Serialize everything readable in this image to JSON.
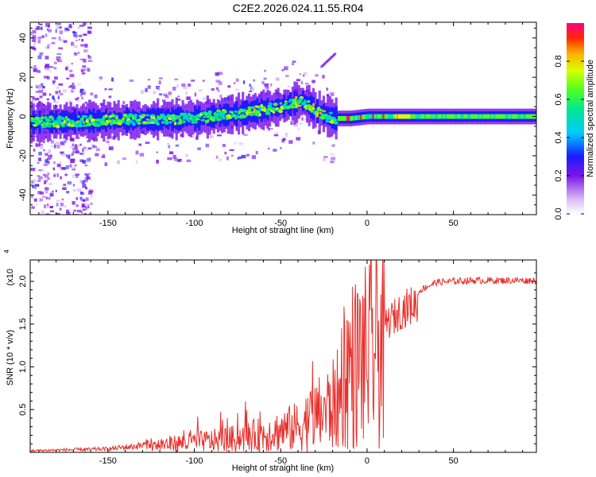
{
  "title": "C2E2.2026.024.11.55.R04",
  "chart_data": [
    {
      "type": "heatmap",
      "xlabel": "Height of straight line (km)",
      "ylabel": "Frequency (Hz)",
      "xlim": [
        -195,
        98
      ],
      "ylim": [
        -50,
        48
      ],
      "xticks": [
        -150,
        -100,
        -50,
        0,
        50
      ],
      "yticks": [
        -40,
        -20,
        0,
        20,
        40
      ],
      "centerline": {
        "x": [
          -195,
          -150,
          -100,
          -70,
          -50,
          -38,
          -30,
          -20,
          -10,
          0,
          20,
          50,
          98
        ],
        "y": [
          -3,
          -2,
          -1,
          2,
          5,
          8,
          3,
          -1,
          -1,
          0,
          0,
          0,
          0
        ]
      },
      "colorbar": {
        "label": "Normalized spectral amplitude",
        "ticks": [
          "0.0",
          "0.2",
          "0.4",
          "0.6",
          "0.8"
        ],
        "range": [
          0,
          1
        ]
      }
    },
    {
      "type": "line",
      "xlabel": "Height of straight line (km)",
      "ylabel": "SNR (10 * v/v)",
      "ymultiplier": "(x10^4)",
      "ymultiplier_base": "(x10",
      "ymultiplier_exp": "4",
      "xlim": [
        -195,
        98
      ],
      "ylim": [
        0,
        2.25
      ],
      "xticks": [
        -150,
        -100,
        -50,
        0,
        50
      ],
      "yticks": [
        "0.5",
        "1.0",
        "1.5",
        "2.0"
      ],
      "series": [
        {
          "name": "SNR",
          "color": "#e8302c",
          "envelope_x": [
            -195,
            -150,
            -130,
            -120,
            -100,
            -80,
            -60,
            -40,
            -30,
            -20,
            -15,
            -10,
            -5,
            0,
            10,
            20,
            30,
            40,
            60,
            98
          ],
          "envelope_y": [
            0.02,
            0.04,
            0.08,
            0.15,
            0.2,
            0.25,
            0.35,
            0.5,
            0.7,
            0.9,
            1.1,
            1.2,
            1.25,
            1.3,
            1.6,
            1.8,
            1.9,
            2.0,
            2.02,
            2.02
          ]
        }
      ]
    }
  ]
}
